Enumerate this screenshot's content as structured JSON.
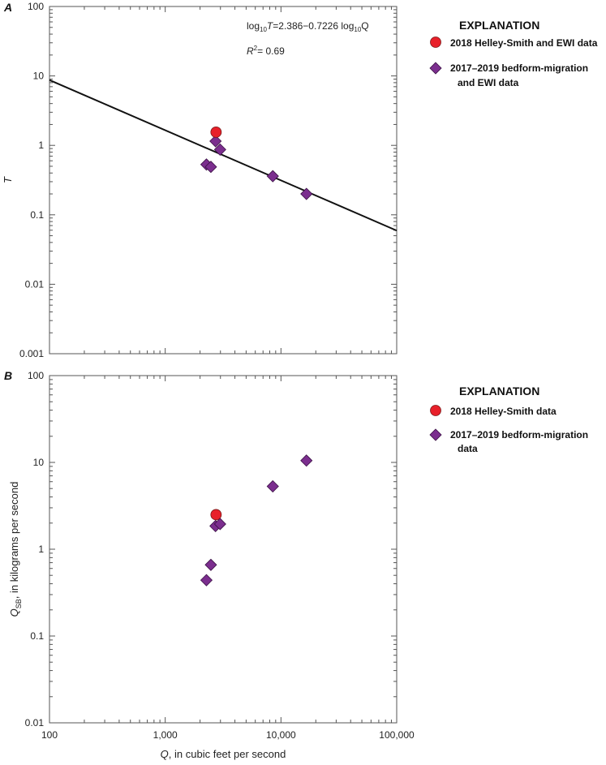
{
  "chart_data": [
    {
      "panel": "A",
      "type": "scatter",
      "xscale": "log",
      "yscale": "log",
      "xlim": [
        100,
        100000
      ],
      "ylim": [
        0.001,
        100
      ],
      "ylabel": "T",
      "y_ticks": [
        "0.001",
        "0.01",
        "0.1",
        "1",
        "10",
        "100"
      ],
      "equation": {
        "part1": "log",
        "sub1": "10",
        "var": "T",
        "part2": "=2.386−0.7226 log",
        "sub2": "10",
        "part3": "Q",
        "r2_var": "R",
        "r2_sup": "2",
        "r2_value": "= 0.69"
      },
      "fit": {
        "intercept": 2.386,
        "slope": -0.7226
      },
      "series": [
        {
          "name": "2018 Helley-Smith and EWI data",
          "marker": "circle",
          "color": "#e8202a",
          "points": [
            {
              "x": 2750,
              "y": 1.55
            }
          ]
        },
        {
          "name_line1": "2017–2019 bedform-migration",
          "name_line2": "and EWI data",
          "marker": "diamond",
          "color": "#7b2e8e",
          "points": [
            {
              "x": 2270,
              "y": 0.53
            },
            {
              "x": 2480,
              "y": 0.49
            },
            {
              "x": 2720,
              "y": 1.15
            },
            {
              "x": 2980,
              "y": 0.87
            },
            {
              "x": 8500,
              "y": 0.36
            },
            {
              "x": 16600,
              "y": 0.2
            }
          ]
        }
      ],
      "legend_title": "EXPLANATION"
    },
    {
      "panel": "B",
      "type": "scatter",
      "xscale": "log",
      "yscale": "log",
      "xlim": [
        100,
        100000
      ],
      "ylim": [
        0.01,
        100
      ],
      "ylabel_main": "Q",
      "ylabel_sub": "SB",
      "ylabel_rest": ", in kilograms per second",
      "xlabel_var": "Q",
      "xlabel_rest": ", in cubic feet per second",
      "x_ticks": [
        "100",
        "1,000",
        "10,000",
        "100,000"
      ],
      "y_ticks": [
        "0.01",
        "0.1",
        "1",
        "10",
        "100"
      ],
      "series": [
        {
          "name": "2018 Helley-Smith data",
          "marker": "circle",
          "color": "#e8202a",
          "points": [
            {
              "x": 2750,
              "y": 2.5
            }
          ]
        },
        {
          "name_line1": "2017–2019 bedform-migration",
          "name_line2": "data",
          "marker": "diamond",
          "color": "#7b2e8e",
          "points": [
            {
              "x": 2270,
              "y": 0.44
            },
            {
              "x": 2480,
              "y": 0.66
            },
            {
              "x": 2720,
              "y": 1.85
            },
            {
              "x": 2980,
              "y": 1.95
            },
            {
              "x": 8500,
              "y": 5.3
            },
            {
              "x": 16600,
              "y": 10.5
            }
          ]
        }
      ],
      "legend_title": "EXPLANATION"
    }
  ]
}
